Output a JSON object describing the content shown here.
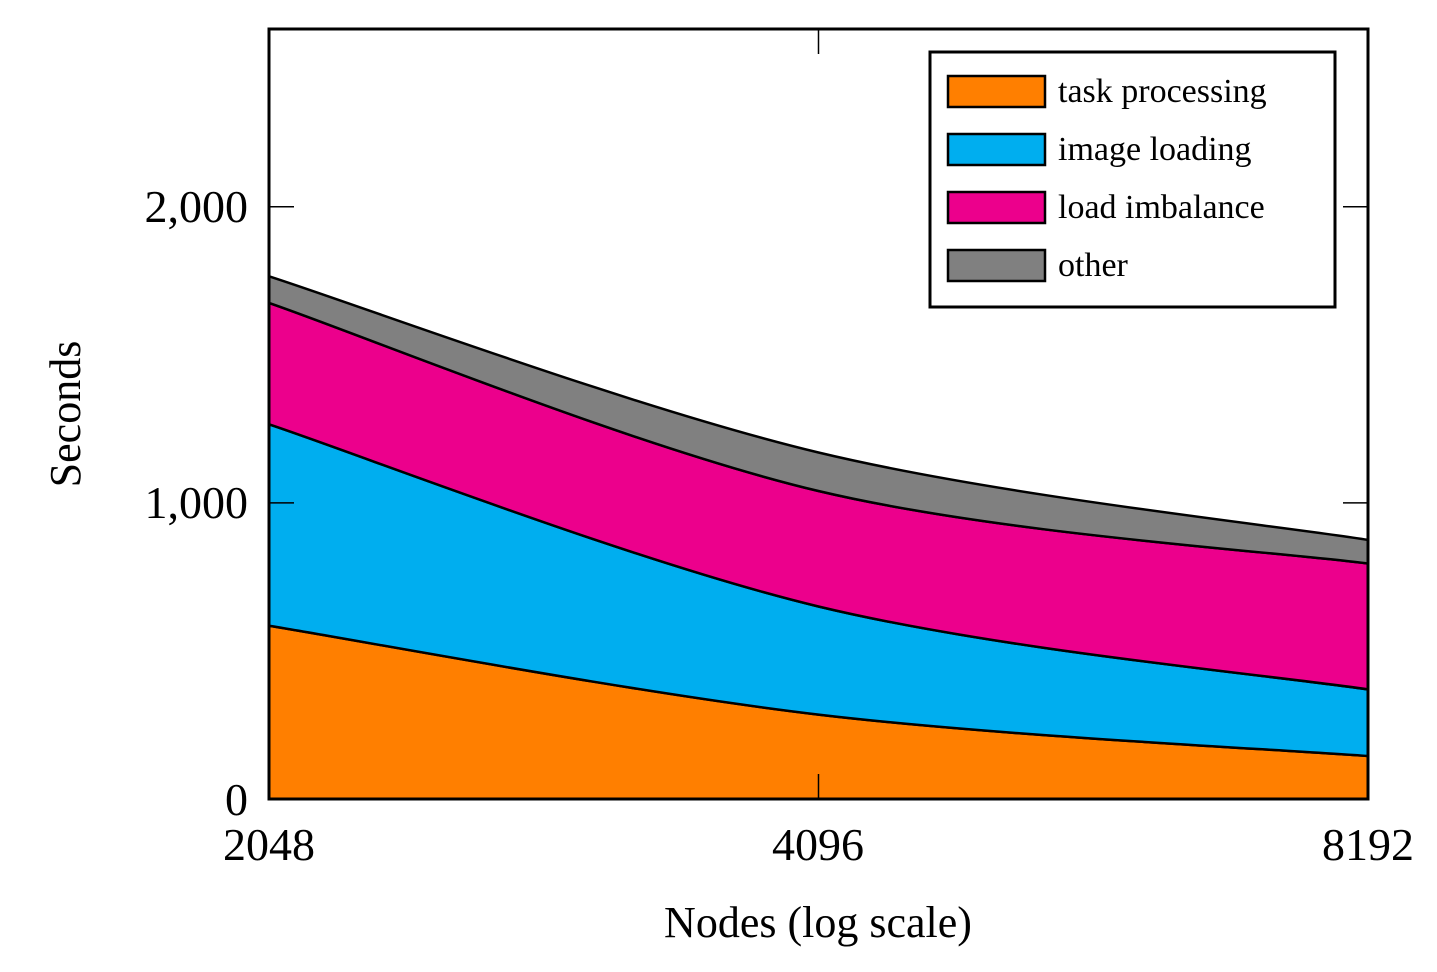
{
  "chart_data": {
    "type": "area",
    "stacked": true,
    "xscale": "log",
    "x": [
      2048,
      4096,
      8192
    ],
    "xticks": [
      "2048",
      "4096",
      "8192"
    ],
    "yticks": [
      "0",
      "1,000",
      "2,000"
    ],
    "ytick_values": [
      0,
      1000,
      2000
    ],
    "xlabel": "Nodes (log scale)",
    "ylabel": "Seconds",
    "ylim": [
      0,
      2600
    ],
    "legend_position": "top-right",
    "series": [
      {
        "name": "task processing",
        "color": "#ff7f00",
        "values": [
          585,
          285,
          145
        ]
      },
      {
        "name": "image loading",
        "color": "#00aeef",
        "values": [
          680,
          365,
          225
        ]
      },
      {
        "name": "load imbalance",
        "color": "#ec008c",
        "values": [
          410,
          390,
          425
        ]
      },
      {
        "name": "other",
        "color": "#808080",
        "values": [
          90,
          130,
          80
        ]
      }
    ]
  }
}
